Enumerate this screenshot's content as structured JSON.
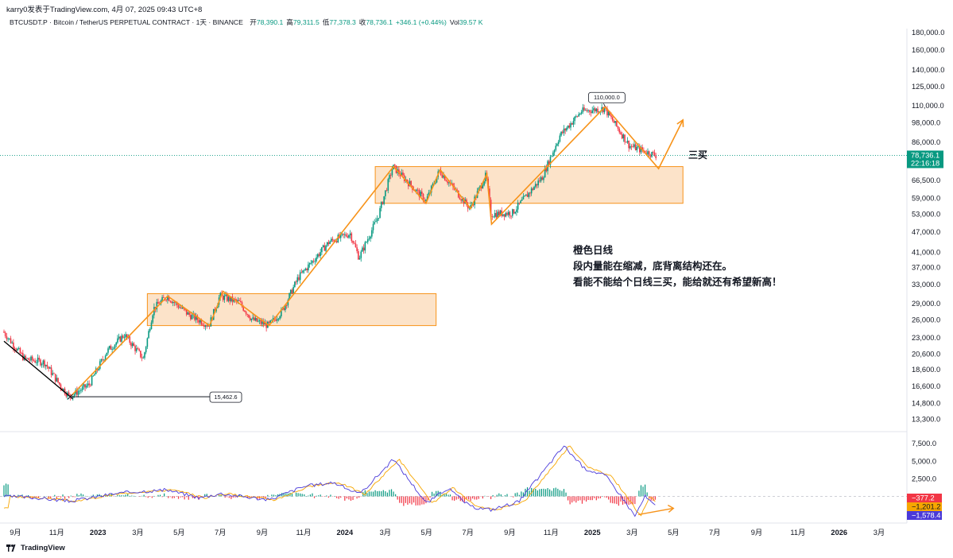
{
  "header": {
    "attribution": "karry0发表于TradingView.com, 4月 07, 2025 09:43 UTC+8",
    "symbol_line": "BTCUSDT.P · Bitcoin / TetherUS PERPETUAL CONTRACT · 1天 · BINANCE",
    "ohlc": [
      {
        "label": "开",
        "value": "78,390.1"
      },
      {
        "label": "高",
        "value": "79,311.5"
      },
      {
        "label": "低",
        "value": "77,378.3"
      },
      {
        "label": "收",
        "value": "78,736.1"
      },
      {
        "label": "",
        "value": "+346.1 (+0.44%)"
      },
      {
        "label": "Vol",
        "value": "39.57 K"
      }
    ]
  },
  "footer": {
    "brand": "TradingView"
  },
  "colors": {
    "up": "#089981",
    "down": "#f23645",
    "orange": "#f7931a",
    "zone_fill": "#fbdcbb",
    "osc_line1": "#4a3ad9",
    "osc_line2": "#f7a600"
  },
  "chart_data": {
    "type": "candlestick",
    "price_axis": {
      "scale": "log",
      "range": [
        12300,
        185000
      ],
      "ticks": [
        "180,000.0",
        "160,000.0",
        "140,000.0",
        "125,000.0",
        "110,000.0",
        "98,000.0",
        "86,000.0",
        "66,500.0",
        "59,000.0",
        "53,000.0",
        "47,000.0",
        "41,000.0",
        "37,000.0",
        "33,000.0",
        "29,000.0",
        "26,000.0",
        "23,000.0",
        "20,600.0",
        "18,600.0",
        "16,600.0",
        "14,800.0",
        "13,300.0"
      ]
    },
    "time_axis": {
      "range": [
        "2022-08-15",
        "2026-04-10"
      ],
      "ticks": [
        {
          "label": "9月",
          "date": "2022-09-01"
        },
        {
          "label": "11月",
          "date": "2022-11-01"
        },
        {
          "label": "2023",
          "date": "2023-01-01"
        },
        {
          "label": "3月",
          "date": "2023-03-01"
        },
        {
          "label": "5月",
          "date": "2023-05-01"
        },
        {
          "label": "7月",
          "date": "2023-07-01"
        },
        {
          "label": "9月",
          "date": "2023-09-01"
        },
        {
          "label": "11月",
          "date": "2023-11-01"
        },
        {
          "label": "2024",
          "date": "2024-01-01"
        },
        {
          "label": "3月",
          "date": "2024-03-01"
        },
        {
          "label": "5月",
          "date": "2024-05-01"
        },
        {
          "label": "7月",
          "date": "2024-07-01"
        },
        {
          "label": "9月",
          "date": "2024-09-01"
        },
        {
          "label": "11月",
          "date": "2024-11-01"
        },
        {
          "label": "2025",
          "date": "2025-01-01"
        },
        {
          "label": "3月",
          "date": "2025-03-01"
        },
        {
          "label": "5月",
          "date": "2025-05-01"
        },
        {
          "label": "7月",
          "date": "2025-07-01"
        },
        {
          "label": "9月",
          "date": "2025-09-01"
        },
        {
          "label": "11月",
          "date": "2025-11-01"
        },
        {
          "label": "2026",
          "date": "2026-01-01"
        },
        {
          "label": "3月",
          "date": "2026-03-01"
        }
      ]
    },
    "price_path": [
      [
        "2022-08-15",
        24000
      ],
      [
        "2022-09-15",
        20000
      ],
      [
        "2022-10-15",
        19500
      ],
      [
        "2022-11-09",
        16500
      ],
      [
        "2022-11-21",
        15500
      ],
      [
        "2022-12-20",
        16800
      ],
      [
        "2023-01-15",
        21000
      ],
      [
        "2023-02-10",
        23500
      ],
      [
        "2023-03-10",
        20000
      ],
      [
        "2023-03-25",
        28000
      ],
      [
        "2023-04-14",
        30500
      ],
      [
        "2023-05-15",
        27000
      ],
      [
        "2023-06-15",
        25000
      ],
      [
        "2023-07-01",
        30500
      ],
      [
        "2023-07-30",
        29200
      ],
      [
        "2023-08-18",
        26000
      ],
      [
        "2023-09-11",
        25000
      ],
      [
        "2023-10-01",
        27500
      ],
      [
        "2023-10-25",
        34500
      ],
      [
        "2023-12-10",
        44000
      ],
      [
        "2024-01-10",
        46500
      ],
      [
        "2024-01-23",
        39500
      ],
      [
        "2024-02-20",
        52000
      ],
      [
        "2024-03-13",
        73000
      ],
      [
        "2024-05-01",
        58000
      ],
      [
        "2024-05-21",
        71000
      ],
      [
        "2024-07-05",
        55000
      ],
      [
        "2024-07-29",
        69000
      ],
      [
        "2024-08-05",
        53000
      ],
      [
        "2024-09-06",
        53500
      ],
      [
        "2024-10-20",
        68000
      ],
      [
        "2024-11-15",
        90000
      ],
      [
        "2024-12-17",
        106000
      ],
      [
        "2025-01-20",
        108000
      ],
      [
        "2025-02-26",
        84000
      ],
      [
        "2025-04-06",
        78736
      ]
    ],
    "current_price": {
      "label": "78,736.1",
      "countdown": "22:16:18",
      "value": 78736.1
    },
    "zones": [
      {
        "from": "2023-03-15",
        "to": "2024-05-15",
        "high": 31000,
        "low": 25000
      },
      {
        "from": "2024-02-15",
        "to": "2025-05-15",
        "high": 73000,
        "low": 57000
      }
    ],
    "pattern_line": [
      [
        "2022-11-21",
        15476
      ],
      [
        "2023-04-14",
        30500
      ],
      [
        "2023-06-15",
        25000
      ],
      [
        "2023-07-05",
        31500
      ],
      [
        "2023-09-11",
        25000
      ],
      [
        "2024-03-13",
        73000
      ],
      [
        "2024-04-30",
        57000
      ],
      [
        "2024-05-21",
        71500
      ],
      [
        "2024-07-05",
        55000
      ],
      [
        "2024-07-29",
        69500
      ],
      [
        "2024-08-05",
        49500
      ],
      [
        "2025-01-20",
        109300
      ],
      [
        "2025-04-09",
        72000
      ],
      [
        "2025-05-15",
        100000
      ]
    ],
    "downtrend_line": [
      [
        "2022-08-15",
        22500
      ],
      [
        "2022-11-21",
        15476
      ]
    ],
    "annotations": {
      "low_label": "15,462.6",
      "high_label": "110,000.0",
      "buy_label": "三买",
      "comment": [
        "橙色日线",
        "段内量能在缩减，底背离结构还在。",
        "看能不能给个日线三买，能给就还有希望新高！"
      ]
    },
    "oscillator": {
      "ticks": [
        "7,500.0",
        "5,000.0",
        "2,500.0"
      ],
      "range": [
        -3800,
        9000
      ],
      "value_labels": [
        {
          "value": -377.2,
          "label": "−377.2",
          "color": "#f23645"
        },
        {
          "value": -1201.2,
          "label": "−1,201.2",
          "color": "#f7a600"
        },
        {
          "value": -1578.4,
          "label": "−1,578.4",
          "color": "#4a3ad9"
        }
      ],
      "path": [
        [
          "2022-08-15",
          0
        ],
        [
          "2022-10-01",
          -200
        ],
        [
          "2022-11-21",
          -700
        ],
        [
          "2023-01-20",
          300
        ],
        [
          "2023-03-01",
          700
        ],
        [
          "2023-04-14",
          900
        ],
        [
          "2023-06-01",
          -200
        ],
        [
          "2023-07-01",
          400
        ],
        [
          "2023-09-11",
          -500
        ],
        [
          "2023-11-01",
          1400
        ],
        [
          "2023-12-15",
          2000
        ],
        [
          "2024-01-23",
          300
        ],
        [
          "2024-03-13",
          5300
        ],
        [
          "2024-05-01",
          -1000
        ],
        [
          "2024-06-01",
          1200
        ],
        [
          "2024-07-05",
          -1500
        ],
        [
          "2024-08-05",
          -1900
        ],
        [
          "2024-09-15",
          -700
        ],
        [
          "2024-11-20",
          7200
        ],
        [
          "2024-12-20",
          4000
        ],
        [
          "2025-01-20",
          3000
        ],
        [
          "2025-02-10",
          400
        ],
        [
          "2025-03-05",
          -2800
        ],
        [
          "2025-03-20",
          0
        ],
        [
          "2025-04-06",
          -1578
        ]
      ]
    }
  }
}
